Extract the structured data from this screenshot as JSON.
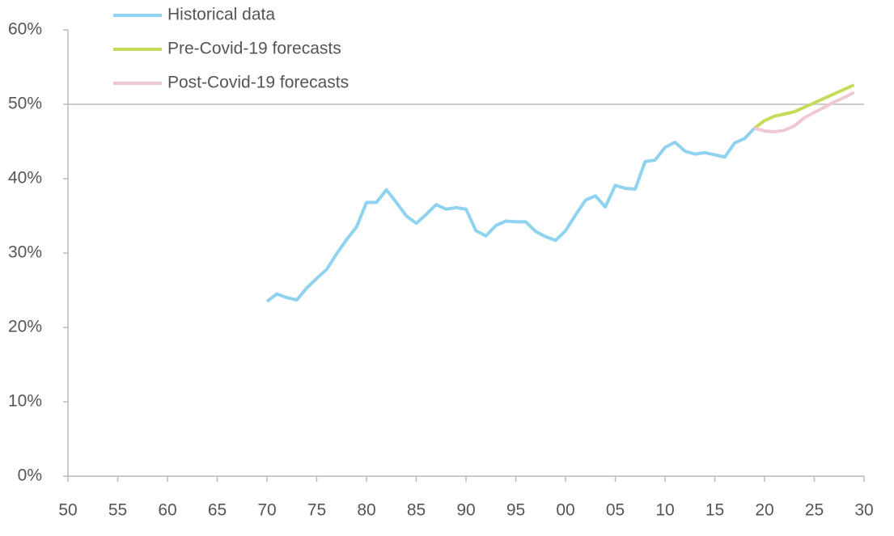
{
  "chart_data": {
    "type": "line",
    "series": [
      {
        "name": "Historical data",
        "color": "#8fd3f0",
        "x": [
          1970,
          1971,
          1972,
          1973,
          1974,
          1975,
          1976,
          1977,
          1978,
          1979,
          1980,
          1981,
          1982,
          1983,
          1984,
          1985,
          1986,
          1987,
          1988,
          1989,
          1990,
          1991,
          1992,
          1993,
          1994,
          1995,
          1996,
          1997,
          1998,
          1999,
          2000,
          2001,
          2002,
          2003,
          2004,
          2005,
          2006,
          2007,
          2008,
          2009,
          2010,
          2011,
          2012,
          2013,
          2014,
          2015,
          2016,
          2017,
          2018,
          2019
        ],
        "values": [
          23.5,
          24.5,
          24.0,
          23.7,
          25.3,
          26.6,
          27.8,
          29.9,
          31.8,
          33.5,
          36.8,
          36.8,
          38.5,
          36.8,
          35.0,
          34.0,
          35.2,
          36.5,
          35.9,
          36.1,
          35.9,
          33.0,
          32.3,
          33.7,
          34.3,
          34.2,
          34.2,
          32.9,
          32.2,
          31.7,
          33.0,
          35.1,
          37.1,
          37.7,
          36.2,
          39.1,
          38.7,
          38.6,
          42.3,
          42.5,
          44.2,
          44.9,
          43.7,
          43.3,
          43.5,
          43.2,
          42.9,
          44.8,
          45.4,
          46.8
        ]
      },
      {
        "name": "Pre-Covid-19 forecasts",
        "color": "#c5dc5a",
        "x": [
          2019,
          2020,
          2021,
          2022,
          2023,
          2024,
          2025,
          2026,
          2027,
          2028,
          2029
        ],
        "values": [
          46.8,
          47.8,
          48.4,
          48.7,
          49.0,
          49.6,
          50.2,
          50.8,
          51.4,
          52.0,
          52.6
        ]
      },
      {
        "name": "Post-Covid-19 forecasts",
        "color": "#f0c8d4",
        "x": [
          2019,
          2020,
          2021,
          2022,
          2023,
          2024,
          2025,
          2026,
          2027,
          2028,
          2029
        ],
        "values": [
          46.8,
          46.4,
          46.3,
          46.5,
          47.1,
          48.2,
          48.9,
          49.6,
          50.3,
          50.9,
          51.6
        ]
      }
    ],
    "xlim": [
      1950,
      2030
    ],
    "xticks": [
      {
        "value": 1950,
        "label": "50"
      },
      {
        "value": 1955,
        "label": "55"
      },
      {
        "value": 1960,
        "label": "60"
      },
      {
        "value": 1965,
        "label": "65"
      },
      {
        "value": 1970,
        "label": "70"
      },
      {
        "value": 1975,
        "label": "75"
      },
      {
        "value": 1980,
        "label": "80"
      },
      {
        "value": 1985,
        "label": "85"
      },
      {
        "value": 1990,
        "label": "90"
      },
      {
        "value": 1995,
        "label": "95"
      },
      {
        "value": 2000,
        "label": "00"
      },
      {
        "value": 2005,
        "label": "05"
      },
      {
        "value": 2010,
        "label": "10"
      },
      {
        "value": 2015,
        "label": "15"
      },
      {
        "value": 2020,
        "label": "20"
      },
      {
        "value": 2025,
        "label": "25"
      },
      {
        "value": 2030,
        "label": "30"
      }
    ],
    "ylim": [
      0,
      60
    ],
    "yticks": [
      {
        "value": 0,
        "label": "0%"
      },
      {
        "value": 10,
        "label": "10%"
      },
      {
        "value": 20,
        "label": "20%"
      },
      {
        "value": 30,
        "label": "30%"
      },
      {
        "value": 40,
        "label": "40%"
      },
      {
        "value": 50,
        "label": "50%"
      },
      {
        "value": 60,
        "label": "60%"
      }
    ],
    "reference_line": 50,
    "legend": "top-left"
  }
}
